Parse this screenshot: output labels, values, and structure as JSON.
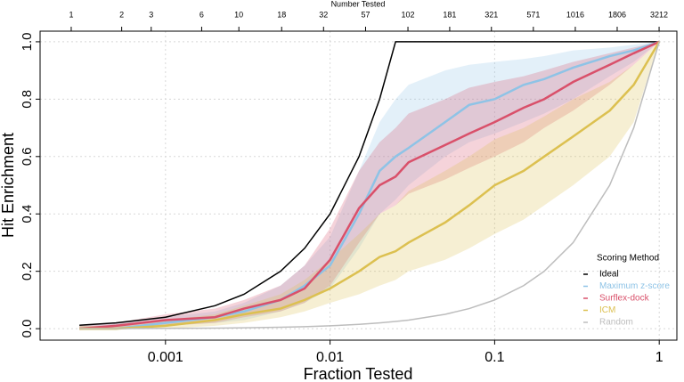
{
  "chart_data": {
    "type": "line",
    "xlabel": "Fraction Tested",
    "ylabel": "Hit Enrichment",
    "x2label": "Number Tested",
    "xscale": "log",
    "x2scale": "log",
    "grid": true,
    "legend_title": "Scoring Method",
    "legend": "bottom-right",
    "xlim": [
      0.000173,
      1.28
    ],
    "xticks": [
      0.001,
      0.01,
      0.1,
      1
    ],
    "x2lim": [
      0.652,
      4100
    ],
    "x2ticks": [
      1,
      2,
      3,
      6,
      10,
      18,
      32,
      57,
      102,
      181,
      321,
      571,
      1016,
      1806,
      3212
    ],
    "ylim": [
      -0.04,
      1.037
    ],
    "yticks": [
      {
        "value": 0,
        "label": "0.0"
      },
      {
        "value": 0.2,
        "label": "0.2"
      },
      {
        "value": 0.4,
        "label": "0.4"
      },
      {
        "value": 0.6,
        "label": "0.6"
      },
      {
        "value": 0.8,
        "label": "0.8"
      },
      {
        "value": 1,
        "label": "1.0"
      }
    ],
    "x": [
      0.0003,
      0.0005,
      0.001,
      0.002,
      0.003,
      0.005,
      0.007,
      0.01,
      0.015,
      0.02,
      0.025,
      0.03,
      0.05,
      0.07,
      0.1,
      0.15,
      0.2,
      0.3,
      0.5,
      0.7,
      1
    ],
    "series": [
      {
        "name": "Ideal",
        "color": "#000000",
        "values": [
          0.012,
          0.02,
          0.04,
          0.08,
          0.12,
          0.2,
          0.28,
          0.4,
          0.6,
          0.8,
          1,
          1,
          1,
          1,
          1,
          1,
          1,
          1,
          1,
          1,
          1
        ]
      },
      {
        "name": "Maximum z-score",
        "color": "#8ec3e6",
        "values": [
          0,
          0,
          0.02,
          0.04,
          0.06,
          0.1,
          0.15,
          0.22,
          0.4,
          0.55,
          0.6,
          0.63,
          0.72,
          0.78,
          0.8,
          0.85,
          0.87,
          0.91,
          0.95,
          0.97,
          1
        ],
        "band_upper": [
          0.01,
          0.02,
          0.04,
          0.06,
          0.09,
          0.15,
          0.22,
          0.32,
          0.55,
          0.72,
          0.8,
          0.85,
          0.9,
          0.92,
          0.93,
          0.94,
          0.95,
          0.97,
          0.98,
          0.99,
          1
        ],
        "band_lower": [
          0,
          0,
          0.01,
          0.02,
          0.03,
          0.06,
          0.09,
          0.14,
          0.28,
          0.4,
          0.45,
          0.5,
          0.6,
          0.65,
          0.68,
          0.72,
          0.75,
          0.8,
          0.88,
          0.93,
          1
        ]
      },
      {
        "name": "Surflex-dock",
        "color": "#d9506a",
        "values": [
          0,
          0.01,
          0.03,
          0.04,
          0.07,
          0.1,
          0.14,
          0.24,
          0.42,
          0.5,
          0.53,
          0.58,
          0.64,
          0.68,
          0.72,
          0.77,
          0.8,
          0.86,
          0.92,
          0.96,
          1
        ],
        "band_upper": [
          0.01,
          0.02,
          0.05,
          0.07,
          0.1,
          0.15,
          0.22,
          0.35,
          0.55,
          0.65,
          0.7,
          0.75,
          0.8,
          0.84,
          0.86,
          0.88,
          0.9,
          0.93,
          0.96,
          0.98,
          1
        ],
        "band_lower": [
          0,
          0,
          0.01,
          0.02,
          0.04,
          0.06,
          0.09,
          0.15,
          0.3,
          0.4,
          0.43,
          0.47,
          0.52,
          0.56,
          0.6,
          0.65,
          0.7,
          0.76,
          0.85,
          0.92,
          1
        ]
      },
      {
        "name": "ICM",
        "color": "#dcc050",
        "values": [
          0,
          0,
          0.01,
          0.03,
          0.05,
          0.07,
          0.1,
          0.14,
          0.2,
          0.25,
          0.27,
          0.3,
          0.37,
          0.43,
          0.5,
          0.55,
          0.6,
          0.67,
          0.76,
          0.85,
          1
        ],
        "band_upper": [
          0.01,
          0.01,
          0.03,
          0.05,
          0.08,
          0.12,
          0.17,
          0.24,
          0.33,
          0.4,
          0.43,
          0.48,
          0.55,
          0.6,
          0.66,
          0.7,
          0.74,
          0.8,
          0.86,
          0.92,
          1
        ],
        "band_lower": [
          0,
          0,
          0,
          0.01,
          0.02,
          0.04,
          0.06,
          0.09,
          0.12,
          0.15,
          0.17,
          0.2,
          0.24,
          0.28,
          0.33,
          0.38,
          0.43,
          0.5,
          0.6,
          0.72,
          1
        ]
      },
      {
        "name": "Random",
        "color": "#bdbdbd",
        "values": [
          0.0003,
          0.0005,
          0.001,
          0.002,
          0.003,
          0.005,
          0.007,
          0.01,
          0.015,
          0.02,
          0.025,
          0.03,
          0.05,
          0.07,
          0.1,
          0.15,
          0.2,
          0.3,
          0.5,
          0.7,
          1
        ]
      }
    ]
  }
}
